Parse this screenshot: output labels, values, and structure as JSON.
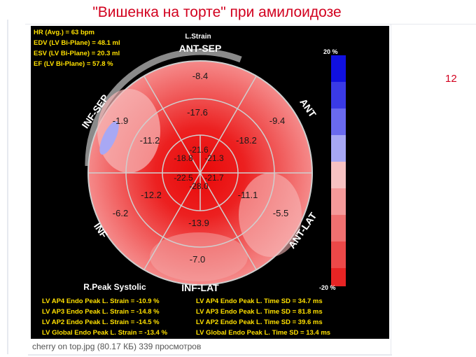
{
  "slide": {
    "title": "\"Вишенка на торте\" при амилоидозе",
    "number": "12"
  },
  "figure": {
    "hemo": [
      "HR (Avg.) = 63 bpm",
      "EDV (LV Bi-Plane) = 48.1 ml",
      "ESV (LV Bi-Plane) = 20.3 ml",
      "EF (LV Bi-Plane) = 57.8 %"
    ],
    "mode_label": "L.Strain",
    "walls": {
      "ant_sep": "ANT-SEP",
      "ant": "ANT",
      "ant_lat": "ANT-LAT",
      "inf_lat": "INF-LAT",
      "inf": "INF",
      "inf_sep": "INF-SEP"
    },
    "segments": {
      "basal": [
        "-8.4",
        "-9.4",
        "-5.5",
        "-7.0",
        "-6.2",
        "-1.9"
      ],
      "mid": [
        "-17.6",
        "-18.2",
        "-11.1",
        "-13.9",
        "-12.2",
        "-11.2"
      ],
      "apical": [
        "-21.6",
        "-21.3",
        "-21.7",
        "-28.0",
        "-22.5",
        "-18.8"
      ]
    },
    "scale": {
      "top": "20 %",
      "bottom": "-20 %"
    },
    "scale_colors": [
      "#1010e0",
      "#3a3ae6",
      "#6a6aee",
      "#a8a8f4",
      "#f7c2c2",
      "#f59a9a",
      "#f07070",
      "#ec4848",
      "#e82424",
      "#e60a0a"
    ],
    "peak_label": "R.Peak Systolic",
    "strain_stats": [
      "LV AP4 Endo Peak L. Strain = -10.9 %",
      "LV AP3 Endo Peak L. Strain = -14.8 %",
      "LV AP2 Endo Peak L. Strain = -14.5 %",
      "LV Global Endo Peak L. Strain = -13.4 %"
    ],
    "time_stats": [
      "LV AP4 Endo Peak L. Time SD = 34.7 ms",
      "LV AP3 Endo Peak L. Time SD = 81.8 ms",
      "LV AP2 Endo Peak L. Time SD = 39.6 ms",
      "LV Global Endo Peak L. Time SD = 13.4 ms"
    ]
  },
  "caption": "cherry on top.jpg (80.17 КБ) 339 просмотров"
}
